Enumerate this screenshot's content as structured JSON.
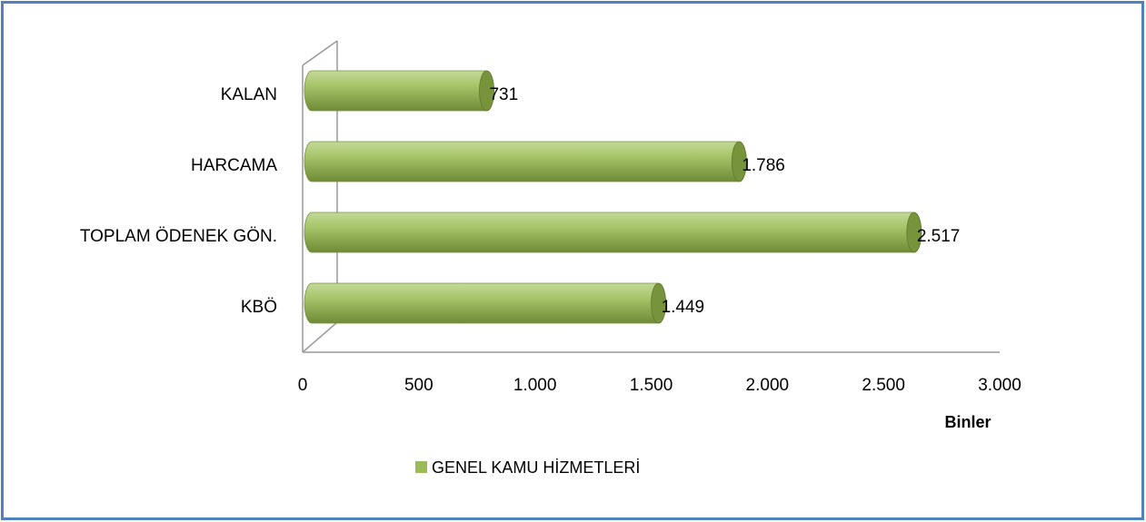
{
  "chart_data": {
    "type": "bar",
    "orientation": "horizontal",
    "categories": [
      "KBÖ",
      "TOPLAM ÖDENEK GÖN.",
      "HARCAMA",
      "KALAN"
    ],
    "series": [
      {
        "name": "GENEL KAMU HİZMETLERİ",
        "color": "#9bbb59",
        "values": [
          1449,
          2517,
          1786,
          731
        ],
        "value_labels": [
          "1.449",
          "2.517",
          "1.786",
          "731"
        ]
      }
    ],
    "xlim": [
      0,
      3000
    ],
    "xticks": [
      0,
      500,
      {
        "value": 1000,
        "label": "1.000"
      },
      {
        "value": 1500,
        "label": "1.500"
      },
      {
        "value": 2000,
        "label": "2.000"
      },
      {
        "value": 2500,
        "label": "2.500"
      },
      {
        "value": 3000,
        "label": "3.000"
      }
    ],
    "xlabel": "Binler",
    "legend": "bottom"
  }
}
